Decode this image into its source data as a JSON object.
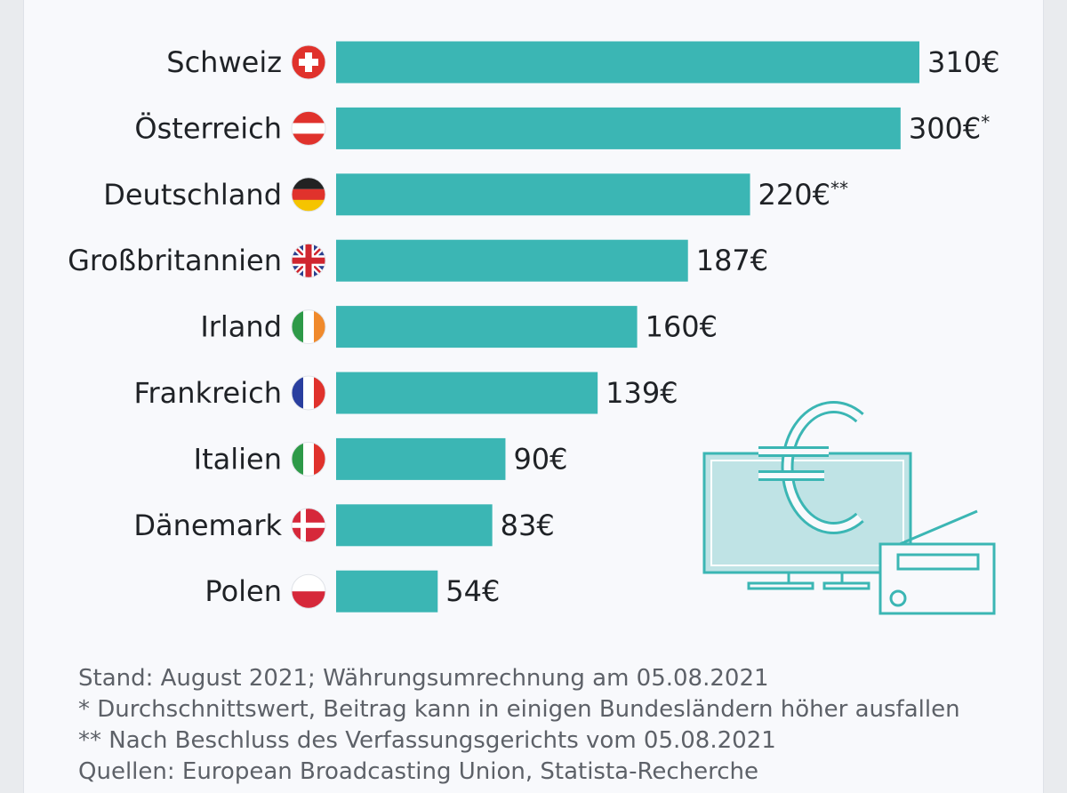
{
  "chart_data": {
    "type": "bar",
    "orientation": "horizontal",
    "categories": [
      "Schweiz",
      "Österreich",
      "Deutschland",
      "Großbritannien",
      "Irland",
      "Frankreich",
      "Italien",
      "Dänemark",
      "Polen"
    ],
    "values": [
      310,
      300,
      220,
      187,
      160,
      139,
      90,
      83,
      54
    ],
    "value_labels": [
      "310€",
      "300€",
      "220€",
      "187€",
      "160€",
      "139€",
      "90€",
      "83€",
      "54€"
    ],
    "label_suffixes": [
      "",
      "*",
      "**",
      "",
      "",
      "",
      "",
      "",
      ""
    ],
    "flags": [
      "swiss-flag-icon",
      "austrian-flag-icon",
      "german-flag-icon",
      "british-flag-icon",
      "irish-flag-icon",
      "french-flag-icon",
      "italian-flag-icon",
      "danish-flag-icon",
      "polish-flag-icon"
    ],
    "unit": "€",
    "xlim": [
      0,
      310
    ],
    "grid": false,
    "bar_color": "#3bb6b4",
    "illustration": "euro-tv-radio-icon"
  },
  "notes": {
    "stand": "Stand: August 2021; Währungsumrechnung am 05.08.2021",
    "footnote_1": "*   Durchschnittswert, Beitrag kann in einigen Bundesländern höher ausfallen",
    "footnote_2": "** Nach Beschluss des Verfassungsgerichts vom 05.08.2021",
    "sources": "Quellen: European Broadcasting Union, Statista-Recherche"
  }
}
